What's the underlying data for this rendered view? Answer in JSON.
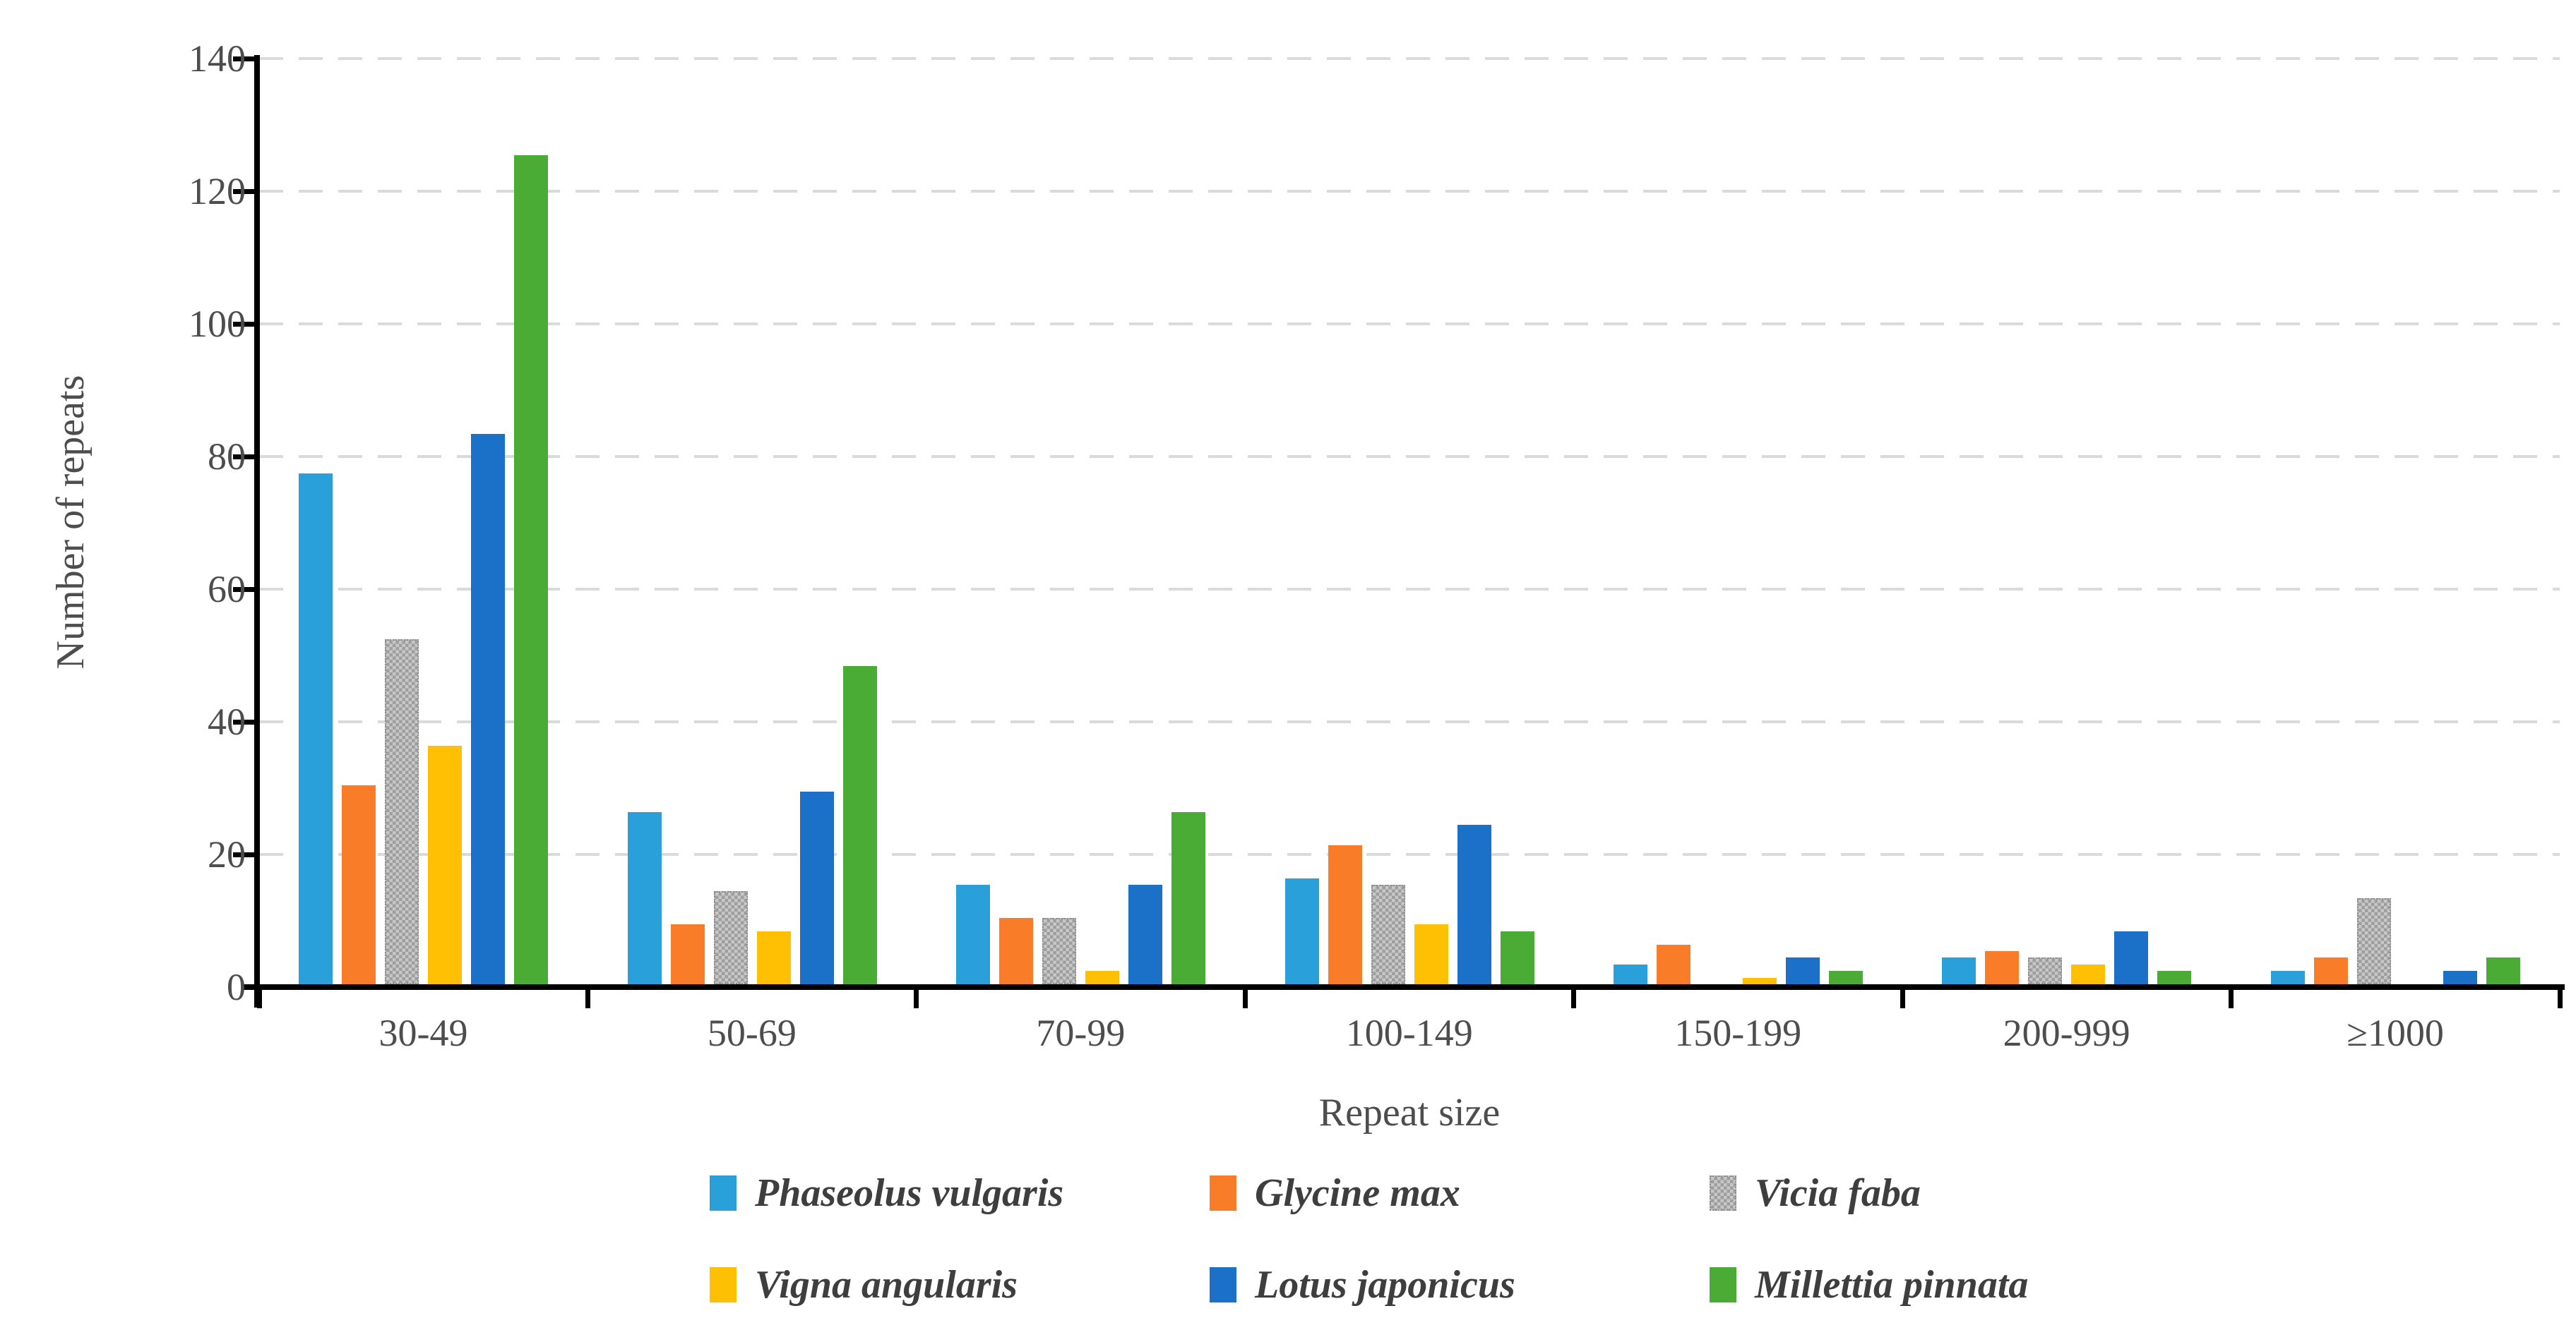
{
  "chart_data": {
    "type": "bar",
    "title": "",
    "xlabel": "Repeat size",
    "ylabel": "Number of repeats",
    "ylim": [
      0,
      140
    ],
    "yticks": [
      0,
      20,
      40,
      60,
      80,
      100,
      120,
      140
    ],
    "grid": "horizontal-dashed",
    "legend_position": "bottom",
    "categories": [
      "30-49",
      "50-69",
      "70-99",
      "100-149",
      "150-199",
      "200-999",
      "≥1000"
    ],
    "series": [
      {
        "name": "Phaseolus vulgaris",
        "color": "#2AA0DA",
        "fill": "solid",
        "values": [
          77,
          26,
          15,
          16,
          3,
          4,
          2
        ]
      },
      {
        "name": "Glycine max",
        "color": "#F97D28",
        "fill": "solid",
        "values": [
          30,
          9,
          10,
          21,
          6,
          5,
          4
        ]
      },
      {
        "name": "Vicia faba",
        "color": "#B3B3B3",
        "fill": "checker",
        "values": [
          52,
          14,
          10,
          15,
          0,
          4,
          13
        ]
      },
      {
        "name": "Vigna angularis",
        "color": "#FFC003",
        "fill": "solid",
        "values": [
          36,
          8,
          2,
          9,
          1,
          3,
          0
        ]
      },
      {
        "name": "Lotus japonicus",
        "color": "#1B71C8",
        "fill": "solid",
        "values": [
          83,
          29,
          15,
          24,
          4,
          8,
          2
        ]
      },
      {
        "name": "Millettia pinnata",
        "color": "#4BAC35",
        "fill": "solid",
        "values": [
          125,
          48,
          26,
          8,
          2,
          2,
          4
        ]
      }
    ],
    "colors": {
      "axis": "#000000",
      "gridline": "#DADADA",
      "tick_label": "#4D4D4D",
      "legend_text": "#3E3E3E"
    }
  }
}
